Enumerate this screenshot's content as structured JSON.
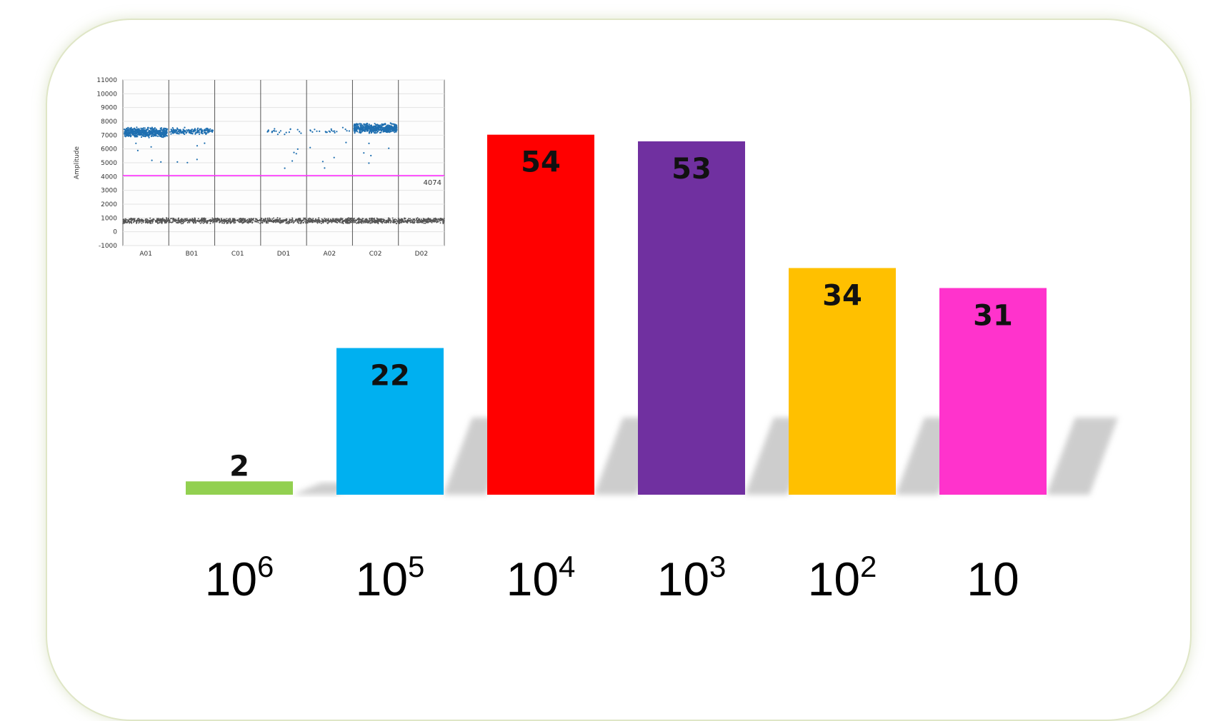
{
  "chart_data": [
    {
      "type": "bar",
      "categories": [
        {
          "base": "10",
          "exp": "6"
        },
        {
          "base": "10",
          "exp": "5"
        },
        {
          "base": "10",
          "exp": "4"
        },
        {
          "base": "10",
          "exp": "3"
        },
        {
          "base": "10",
          "exp": "2"
        },
        {
          "base": "10",
          "exp": ""
        }
      ],
      "values": [
        2,
        22,
        54,
        53,
        34,
        31
      ],
      "value_labels": [
        "2",
        "22",
        "54",
        "53",
        "34",
        "31"
      ],
      "colors": [
        "#92d050",
        "#00b0f0",
        "#ff0000",
        "#7030a0",
        "#ffc000",
        "#ff33cc"
      ],
      "title": "",
      "xlabel": "",
      "ylabel": "",
      "ylim": [
        0,
        56
      ],
      "grid": false,
      "legend": "none"
    },
    {
      "type": "scatter",
      "ylabel": "Amplitude",
      "ylim": [
        -1000,
        11000
      ],
      "yticks": [
        "11000",
        "10000",
        "9000",
        "8000",
        "7000",
        "6000",
        "5000",
        "4000",
        "3000",
        "2000",
        "1000",
        "0",
        "-1000"
      ],
      "wells": [
        "A01",
        "B01",
        "C01",
        "D01",
        "A02",
        "C02",
        "D02"
      ],
      "threshold": {
        "value": 4074,
        "label": "4074",
        "color": "#ff33ff"
      },
      "positive_color": "#1f6fb0",
      "negative_color": "#555555",
      "grid": true,
      "positive_bands": [
        {
          "well": "A01",
          "center": 7200,
          "density": "high"
        },
        {
          "well": "B01",
          "center": 7300,
          "density": "medium"
        },
        {
          "well": "C01",
          "center": 0,
          "density": "none"
        },
        {
          "well": "D01",
          "center": 7300,
          "density": "low"
        },
        {
          "well": "A02",
          "center": 7300,
          "density": "low"
        },
        {
          "well": "C02",
          "center": 7500,
          "density": "high"
        },
        {
          "well": "D02",
          "center": 0,
          "density": "none"
        }
      ],
      "negative_band_center": 800
    }
  ]
}
